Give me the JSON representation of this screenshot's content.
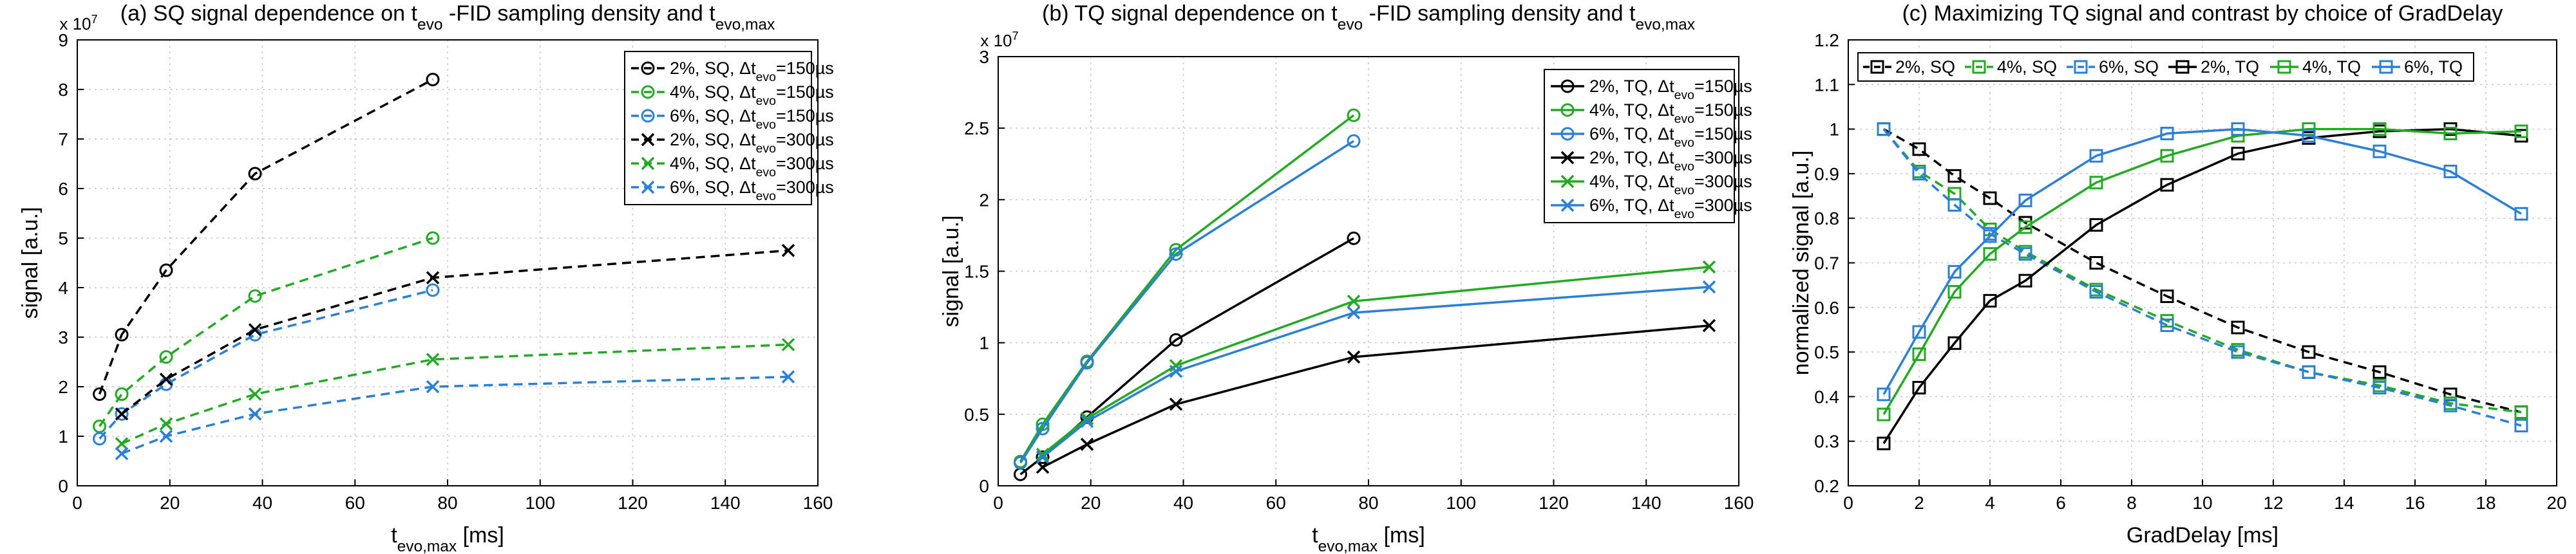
{
  "chart_data": [
    {
      "type": "line",
      "title": "(a) SQ signal dependence on t evo -FID sampling density and t evo,max",
      "xlabel": "t evo,max [ms]",
      "ylabel": "signal [a.u.]",
      "xlim": [
        0,
        160
      ],
      "ylim": [
        0,
        9
      ],
      "xticks": [
        0,
        20,
        40,
        60,
        80,
        100,
        120,
        140,
        160
      ],
      "yticks": [
        0,
        1,
        2,
        3,
        4,
        5,
        6,
        7,
        8,
        9
      ],
      "y_multiplier": "x 10^7",
      "y_exponent_base": "x 10",
      "y_exponent_power": "7",
      "grid": true,
      "legend_position": "top-right",
      "series": [
        {
          "name": "2%, SQ, Δt evo=150µs",
          "color": "#000000",
          "dash": "dashed",
          "marker": "circle",
          "x": [
            4.8,
            9.6,
            19.2,
            38.4,
            76.8
          ],
          "y": [
            1.85,
            3.05,
            4.35,
            6.3,
            8.2
          ]
        },
        {
          "name": "4%, SQ, Δt evo=150µs",
          "color": "#22aa22",
          "dash": "dashed",
          "marker": "circle",
          "x": [
            4.8,
            9.6,
            19.2,
            38.4,
            76.8
          ],
          "y": [
            1.2,
            1.85,
            2.6,
            3.83,
            5.0
          ]
        },
        {
          "name": "6%, SQ, Δt evo=150µs",
          "color": "#2a7fd8",
          "dash": "dashed",
          "marker": "circle",
          "x": [
            4.8,
            9.6,
            19.2,
            38.4,
            76.8
          ],
          "y": [
            0.95,
            1.45,
            2.05,
            3.05,
            3.95
          ]
        },
        {
          "name": "2%, SQ, Δt evo=300µs",
          "color": "#000000",
          "dash": "dashed",
          "marker": "x",
          "x": [
            9.6,
            19.2,
            38.4,
            76.8,
            153.6
          ],
          "y": [
            1.45,
            2.15,
            3.15,
            4.2,
            4.75
          ]
        },
        {
          "name": "4%, SQ, Δt evo=300µs",
          "color": "#22aa22",
          "dash": "dashed",
          "marker": "x",
          "x": [
            9.6,
            19.2,
            38.4,
            76.8,
            153.6
          ],
          "y": [
            0.85,
            1.25,
            1.85,
            2.55,
            2.85
          ]
        },
        {
          "name": "6%, SQ, Δt evo=300µs",
          "color": "#2a7fd8",
          "dash": "dashed",
          "marker": "x",
          "x": [
            9.6,
            19.2,
            38.4,
            76.8,
            153.6
          ],
          "y": [
            0.65,
            1.0,
            1.45,
            2.0,
            2.2
          ]
        }
      ]
    },
    {
      "type": "line",
      "title": "(b) TQ signal dependence on t evo -FID sampling density and t evo,max",
      "xlabel": "t evo,max [ms]",
      "ylabel": "signal [a.u.]",
      "xlim": [
        0,
        160
      ],
      "ylim": [
        0,
        3
      ],
      "xticks": [
        0,
        20,
        40,
        60,
        80,
        100,
        120,
        140,
        160
      ],
      "yticks": [
        0,
        0.5,
        1,
        1.5,
        2,
        2.5,
        3
      ],
      "y_multiplier": "x 10^7",
      "y_exponent_base": "x 10",
      "y_exponent_power": "7",
      "grid": true,
      "legend_position": "top-right",
      "series": [
        {
          "name": "2%, TQ, Δt evo=150µs",
          "color": "#000000",
          "dash": "solid",
          "marker": "circle",
          "x": [
            4.8,
            9.6,
            19.2,
            38.4,
            76.8
          ],
          "y": [
            0.08,
            0.2,
            0.48,
            1.02,
            1.73
          ]
        },
        {
          "name": "4%, TQ, Δt evo=150µs",
          "color": "#22aa22",
          "dash": "solid",
          "marker": "circle",
          "x": [
            4.8,
            9.6,
            19.2,
            38.4,
            76.8
          ],
          "y": [
            0.17,
            0.43,
            0.87,
            1.65,
            2.59
          ]
        },
        {
          "name": "6%, TQ, Δt evo=150µs",
          "color": "#2a7fd8",
          "dash": "solid",
          "marker": "circle",
          "x": [
            4.8,
            9.6,
            19.2,
            38.4,
            76.8
          ],
          "y": [
            0.16,
            0.4,
            0.86,
            1.62,
            2.41
          ]
        },
        {
          "name": "2%, TQ, Δt evo=300µs",
          "color": "#000000",
          "dash": "solid",
          "marker": "x",
          "x": [
            9.6,
            19.2,
            38.4,
            76.8,
            153.6
          ],
          "y": [
            0.13,
            0.29,
            0.57,
            0.9,
            1.12
          ]
        },
        {
          "name": "4%, TQ, Δt evo=300µs",
          "color": "#22aa22",
          "dash": "solid",
          "marker": "x",
          "x": [
            9.6,
            19.2,
            38.4,
            76.8,
            153.6
          ],
          "y": [
            0.22,
            0.47,
            0.84,
            1.29,
            1.53
          ]
        },
        {
          "name": "6%, TQ, Δt evo=300µs",
          "color": "#2a7fd8",
          "dash": "solid",
          "marker": "x",
          "x": [
            9.6,
            19.2,
            38.4,
            76.8,
            153.6
          ],
          "y": [
            0.2,
            0.45,
            0.8,
            1.21,
            1.39
          ]
        }
      ]
    },
    {
      "type": "line",
      "title": "(c) Maximizing TQ signal and contrast by choice of GradDelay",
      "xlabel": "GradDelay [ms]",
      "ylabel": "normalized signal [a.u.]",
      "xlim": [
        0,
        20
      ],
      "ylim": [
        0.2,
        1.2
      ],
      "xticks": [
        0,
        2,
        4,
        6,
        8,
        10,
        12,
        14,
        16,
        18,
        20
      ],
      "yticks": [
        0.2,
        0.3,
        0.4,
        0.5,
        0.6,
        0.7,
        0.8,
        0.9,
        1,
        1.1,
        1.2
      ],
      "grid": true,
      "legend_position": "top",
      "series": [
        {
          "name": "2%, SQ",
          "color": "#000000",
          "dash": "dashed",
          "marker": "square",
          "x": [
            1,
            2,
            3,
            4,
            5,
            7,
            9,
            11,
            13,
            15,
            17,
            19
          ],
          "y": [
            1.0,
            0.955,
            0.895,
            0.845,
            0.79,
            0.7,
            0.625,
            0.555,
            0.5,
            0.455,
            0.405,
            0.365
          ]
        },
        {
          "name": "4%, SQ",
          "color": "#22aa22",
          "dash": "dashed",
          "marker": "square",
          "x": [
            1,
            2,
            3,
            4,
            5,
            7,
            9,
            11,
            13,
            15,
            17,
            19
          ],
          "y": [
            1.0,
            0.905,
            0.855,
            0.775,
            0.725,
            0.64,
            0.57,
            0.505,
            0.455,
            0.425,
            0.385,
            0.365
          ]
        },
        {
          "name": "6%, SQ",
          "color": "#2a7fd8",
          "dash": "dashed",
          "marker": "square",
          "x": [
            1,
            2,
            3,
            4,
            5,
            7,
            9,
            11,
            13,
            15,
            17,
            19
          ],
          "y": [
            1.0,
            0.9,
            0.83,
            0.765,
            0.72,
            0.635,
            0.56,
            0.5,
            0.455,
            0.42,
            0.38,
            0.335
          ]
        },
        {
          "name": "2%, TQ",
          "color": "#000000",
          "dash": "solid",
          "marker": "square",
          "x": [
            1,
            2,
            3,
            4,
            5,
            7,
            9,
            11,
            13,
            15,
            17,
            19
          ],
          "y": [
            0.295,
            0.42,
            0.52,
            0.615,
            0.66,
            0.785,
            0.875,
            0.945,
            0.98,
            0.995,
            1.0,
            0.985
          ]
        },
        {
          "name": "4%, TQ",
          "color": "#22aa22",
          "dash": "solid",
          "marker": "square",
          "x": [
            1,
            2,
            3,
            4,
            5,
            7,
            9,
            11,
            13,
            15,
            17,
            19
          ],
          "y": [
            0.36,
            0.495,
            0.635,
            0.72,
            0.78,
            0.88,
            0.94,
            0.985,
            1.0,
            1.0,
            0.99,
            0.995
          ]
        },
        {
          "name": "6%, TQ",
          "color": "#2a7fd8",
          "dash": "solid",
          "marker": "square",
          "x": [
            1,
            2,
            3,
            4,
            5,
            7,
            9,
            11,
            13,
            15,
            17,
            19
          ],
          "y": [
            0.405,
            0.545,
            0.68,
            0.76,
            0.84,
            0.94,
            0.99,
            1.0,
            0.985,
            0.95,
            0.905,
            0.81
          ]
        }
      ]
    }
  ]
}
